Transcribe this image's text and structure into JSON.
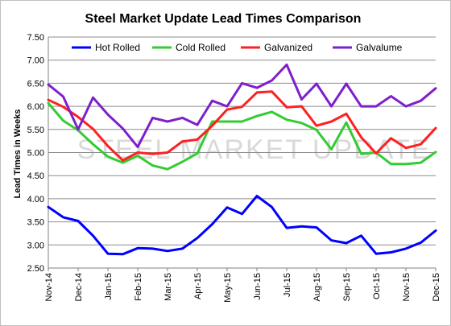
{
  "chart_data": {
    "type": "line",
    "title": "Steel Market Update Lead Times Comparison",
    "ylabel": "Lead Times in Weeks",
    "xlabel": "",
    "watermark": "STEEL MARKET UPDATE",
    "ylim": [
      2.5,
      7.5
    ],
    "yticks": [
      "2.50",
      "3.00",
      "3.50",
      "4.00",
      "4.50",
      "5.00",
      "5.50",
      "6.00",
      "6.50",
      "7.00",
      "7.50"
    ],
    "x_tick_labels": [
      "Nov-14",
      "Dec-14",
      "Jan-15",
      "Feb-15",
      "Mar-15",
      "Apr-15",
      "May-15",
      "Jun-15",
      "Jul-15",
      "Aug-15",
      "Sep-15",
      "Oct-15",
      "Nov-15",
      "Dec-15"
    ],
    "points_per_month": 2,
    "grid": true,
    "legend_position": "top",
    "series": [
      {
        "name": "Hot Rolled",
        "color": "#0000ff",
        "values": [
          3.82,
          3.6,
          3.52,
          3.2,
          2.81,
          2.8,
          2.93,
          2.92,
          2.87,
          2.92,
          3.15,
          3.45,
          3.81,
          3.67,
          4.06,
          3.82,
          3.37,
          3.4,
          3.38,
          3.1,
          3.04,
          3.2,
          2.81,
          2.84,
          2.92,
          3.05,
          3.31
        ]
      },
      {
        "name": "Cold Rolled",
        "color": "#33cc33",
        "values": [
          6.07,
          5.69,
          5.48,
          5.18,
          4.91,
          4.78,
          4.93,
          4.72,
          4.64,
          4.8,
          4.98,
          5.67,
          5.67,
          5.67,
          5.79,
          5.88,
          5.71,
          5.64,
          5.49,
          5.07,
          5.65,
          4.97,
          5.0,
          4.75,
          4.75,
          4.78,
          5.01
        ]
      },
      {
        "name": "Galvanized",
        "color": "#ff2020",
        "values": [
          6.14,
          5.99,
          5.77,
          5.51,
          5.14,
          4.83,
          5.0,
          4.97,
          5.0,
          5.24,
          5.28,
          5.58,
          5.93,
          5.99,
          6.3,
          6.32,
          5.98,
          6.0,
          5.58,
          5.67,
          5.84,
          5.33,
          4.98,
          5.31,
          5.1,
          5.18,
          5.53
        ]
      },
      {
        "name": "Galvalume",
        "color": "#7f1fcc",
        "values": [
          6.47,
          6.21,
          5.5,
          6.19,
          5.82,
          5.52,
          5.12,
          5.75,
          5.67,
          5.75,
          5.6,
          6.12,
          6.0,
          6.5,
          6.4,
          6.56,
          6.9,
          6.15,
          6.49,
          6.0,
          6.49,
          6.0,
          6.0,
          6.22,
          6.0,
          6.12,
          6.39
        ]
      }
    ]
  }
}
